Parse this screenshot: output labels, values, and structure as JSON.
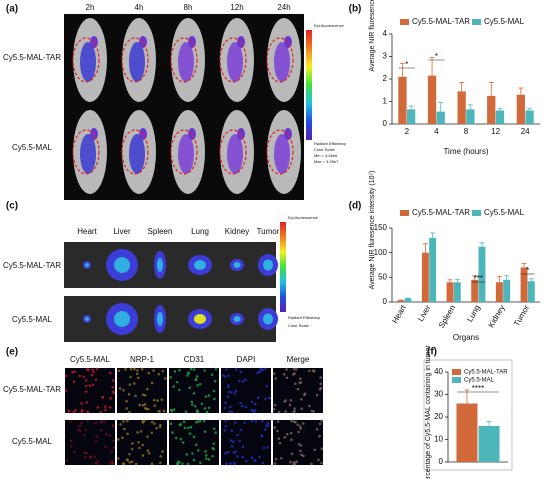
{
  "panels": {
    "a": {
      "label": "(a)",
      "times": [
        "2h",
        "4h",
        "8h",
        "12h",
        "24h"
      ],
      "rows": [
        "Cy5.5-MAL-TAR",
        "Cy5.5-MAL"
      ],
      "colorbar": [
        "Epi-fluorescence",
        "Radiant Efficiency",
        "Color Scale",
        "Min = 4.46e6",
        "Max = 3.29e7"
      ]
    },
    "c": {
      "label": "(c)",
      "organs": [
        "Heart",
        "Liver",
        "Spleen",
        "Lung",
        "Kidney",
        "Tumor"
      ],
      "rows": [
        "Cy5.5-MAL-TAR",
        "Cy5.5-MAL"
      ],
      "colorbar": [
        "Epi-fluorescence",
        "Radiant Efficiency",
        "Color Scale"
      ]
    },
    "e": {
      "label": "(e)",
      "columns": [
        "Cy5.5-MAL",
        "NRP-1",
        "CD31",
        "DAPI",
        "Merge"
      ],
      "rows": [
        "Cy5.5-MAL-TAR",
        "Cy5.5-MAL"
      ]
    }
  },
  "chart_data": [
    {
      "type": "bar",
      "label": "(b)",
      "y_label": "Average NIR fluresence intensity (10⁹)",
      "x_label": "Time (hours)",
      "categories": [
        "2",
        "4",
        "8",
        "12",
        "24"
      ],
      "ylim": [
        0,
        4
      ],
      "yticks": [
        0,
        1,
        2,
        3,
        4
      ],
      "legend": "top",
      "series": [
        {
          "name": "Cy5.5-MAL-TAR",
          "color": "#d2693a",
          "values": [
            2.1,
            2.15,
            1.45,
            1.25,
            1.3
          ],
          "errors": [
            0.6,
            0.8,
            0.4,
            0.6,
            0.3
          ]
        },
        {
          "name": "Cy5.5-MAL",
          "color": "#4db6bb",
          "values": [
            0.65,
            0.55,
            0.65,
            0.6,
            0.6
          ],
          "errors": [
            0.15,
            0.4,
            0.2,
            0.1,
            0.1
          ]
        }
      ],
      "annotations": [
        "*",
        "*"
      ]
    },
    {
      "type": "bar",
      "label": "(d)",
      "y_label": "Average NIR fluresence intensity (10⁷)",
      "x_label": "Organs",
      "categories": [
        "Heart",
        "Liver",
        "Spleen",
        "Lung",
        "Kidney",
        "Tumor"
      ],
      "ylim": [
        0,
        150
      ],
      "yticks": [
        0,
        50,
        100,
        150
      ],
      "legend": "top",
      "series": [
        {
          "name": "Cy5.5-MAL-TAR",
          "color": "#d2693a",
          "values": [
            3,
            100,
            40,
            45,
            40,
            70
          ],
          "errors": [
            1,
            18,
            5,
            8,
            12,
            8
          ]
        },
        {
          "name": "Cy5.5-MAL",
          "color": "#4db6bb",
          "values": [
            7,
            130,
            40,
            112,
            45,
            42
          ],
          "errors": [
            1,
            10,
            6,
            8,
            8,
            5
          ]
        }
      ],
      "annotations": [
        "***",
        "*"
      ]
    },
    {
      "type": "bar",
      "label": "(f)",
      "y_label": "Percentage of Cy5.5-MAL containing in tumor",
      "categories": [
        null
      ],
      "ylim": [
        0,
        40
      ],
      "yticks": [
        0,
        10,
        20,
        30,
        40
      ],
      "legend": "top-left",
      "series": [
        {
          "name": "Cy5.5-MAL-TAR",
          "color": "#d2693a",
          "values": [
            26
          ],
          "errors": [
            6
          ]
        },
        {
          "name": "Cy5.5-MAL",
          "color": "#4db6bb",
          "values": [
            16
          ],
          "errors": [
            2
          ]
        }
      ],
      "annotations": [
        "****"
      ]
    }
  ]
}
